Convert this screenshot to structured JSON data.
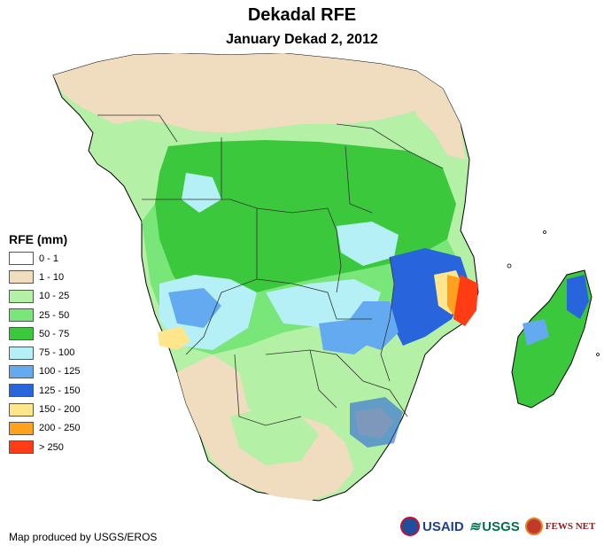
{
  "title": "Dekadal RFE",
  "subtitle": "January Dekad 2, 2012",
  "legend": {
    "title": "RFE (mm)",
    "items": [
      {
        "label": "0 - 1",
        "color": "#ffffff"
      },
      {
        "label": "1 - 10",
        "color": "#f0dcbe"
      },
      {
        "label": "10 - 25",
        "color": "#b4f0a5"
      },
      {
        "label": "25 - 50",
        "color": "#78e678"
      },
      {
        "label": "50 - 75",
        "color": "#3cc83c"
      },
      {
        "label": "75 - 100",
        "color": "#b4f0f5"
      },
      {
        "label": "100 - 125",
        "color": "#64aaf0"
      },
      {
        "label": "125 - 150",
        "color": "#2864dc"
      },
      {
        "label": "150 - 200",
        "color": "#ffe68c"
      },
      {
        "label": "200 - 250",
        "color": "#ffa01e"
      },
      {
        "label": "> 250",
        "color": "#ff3c14"
      }
    ]
  },
  "credit": "Map produced by USGS/EROS",
  "logos": {
    "usaid": "USAID",
    "usgs": "USGS",
    "fews": "FEWS NET"
  },
  "colors": {
    "border": "#333333",
    "coast": "#000000"
  }
}
